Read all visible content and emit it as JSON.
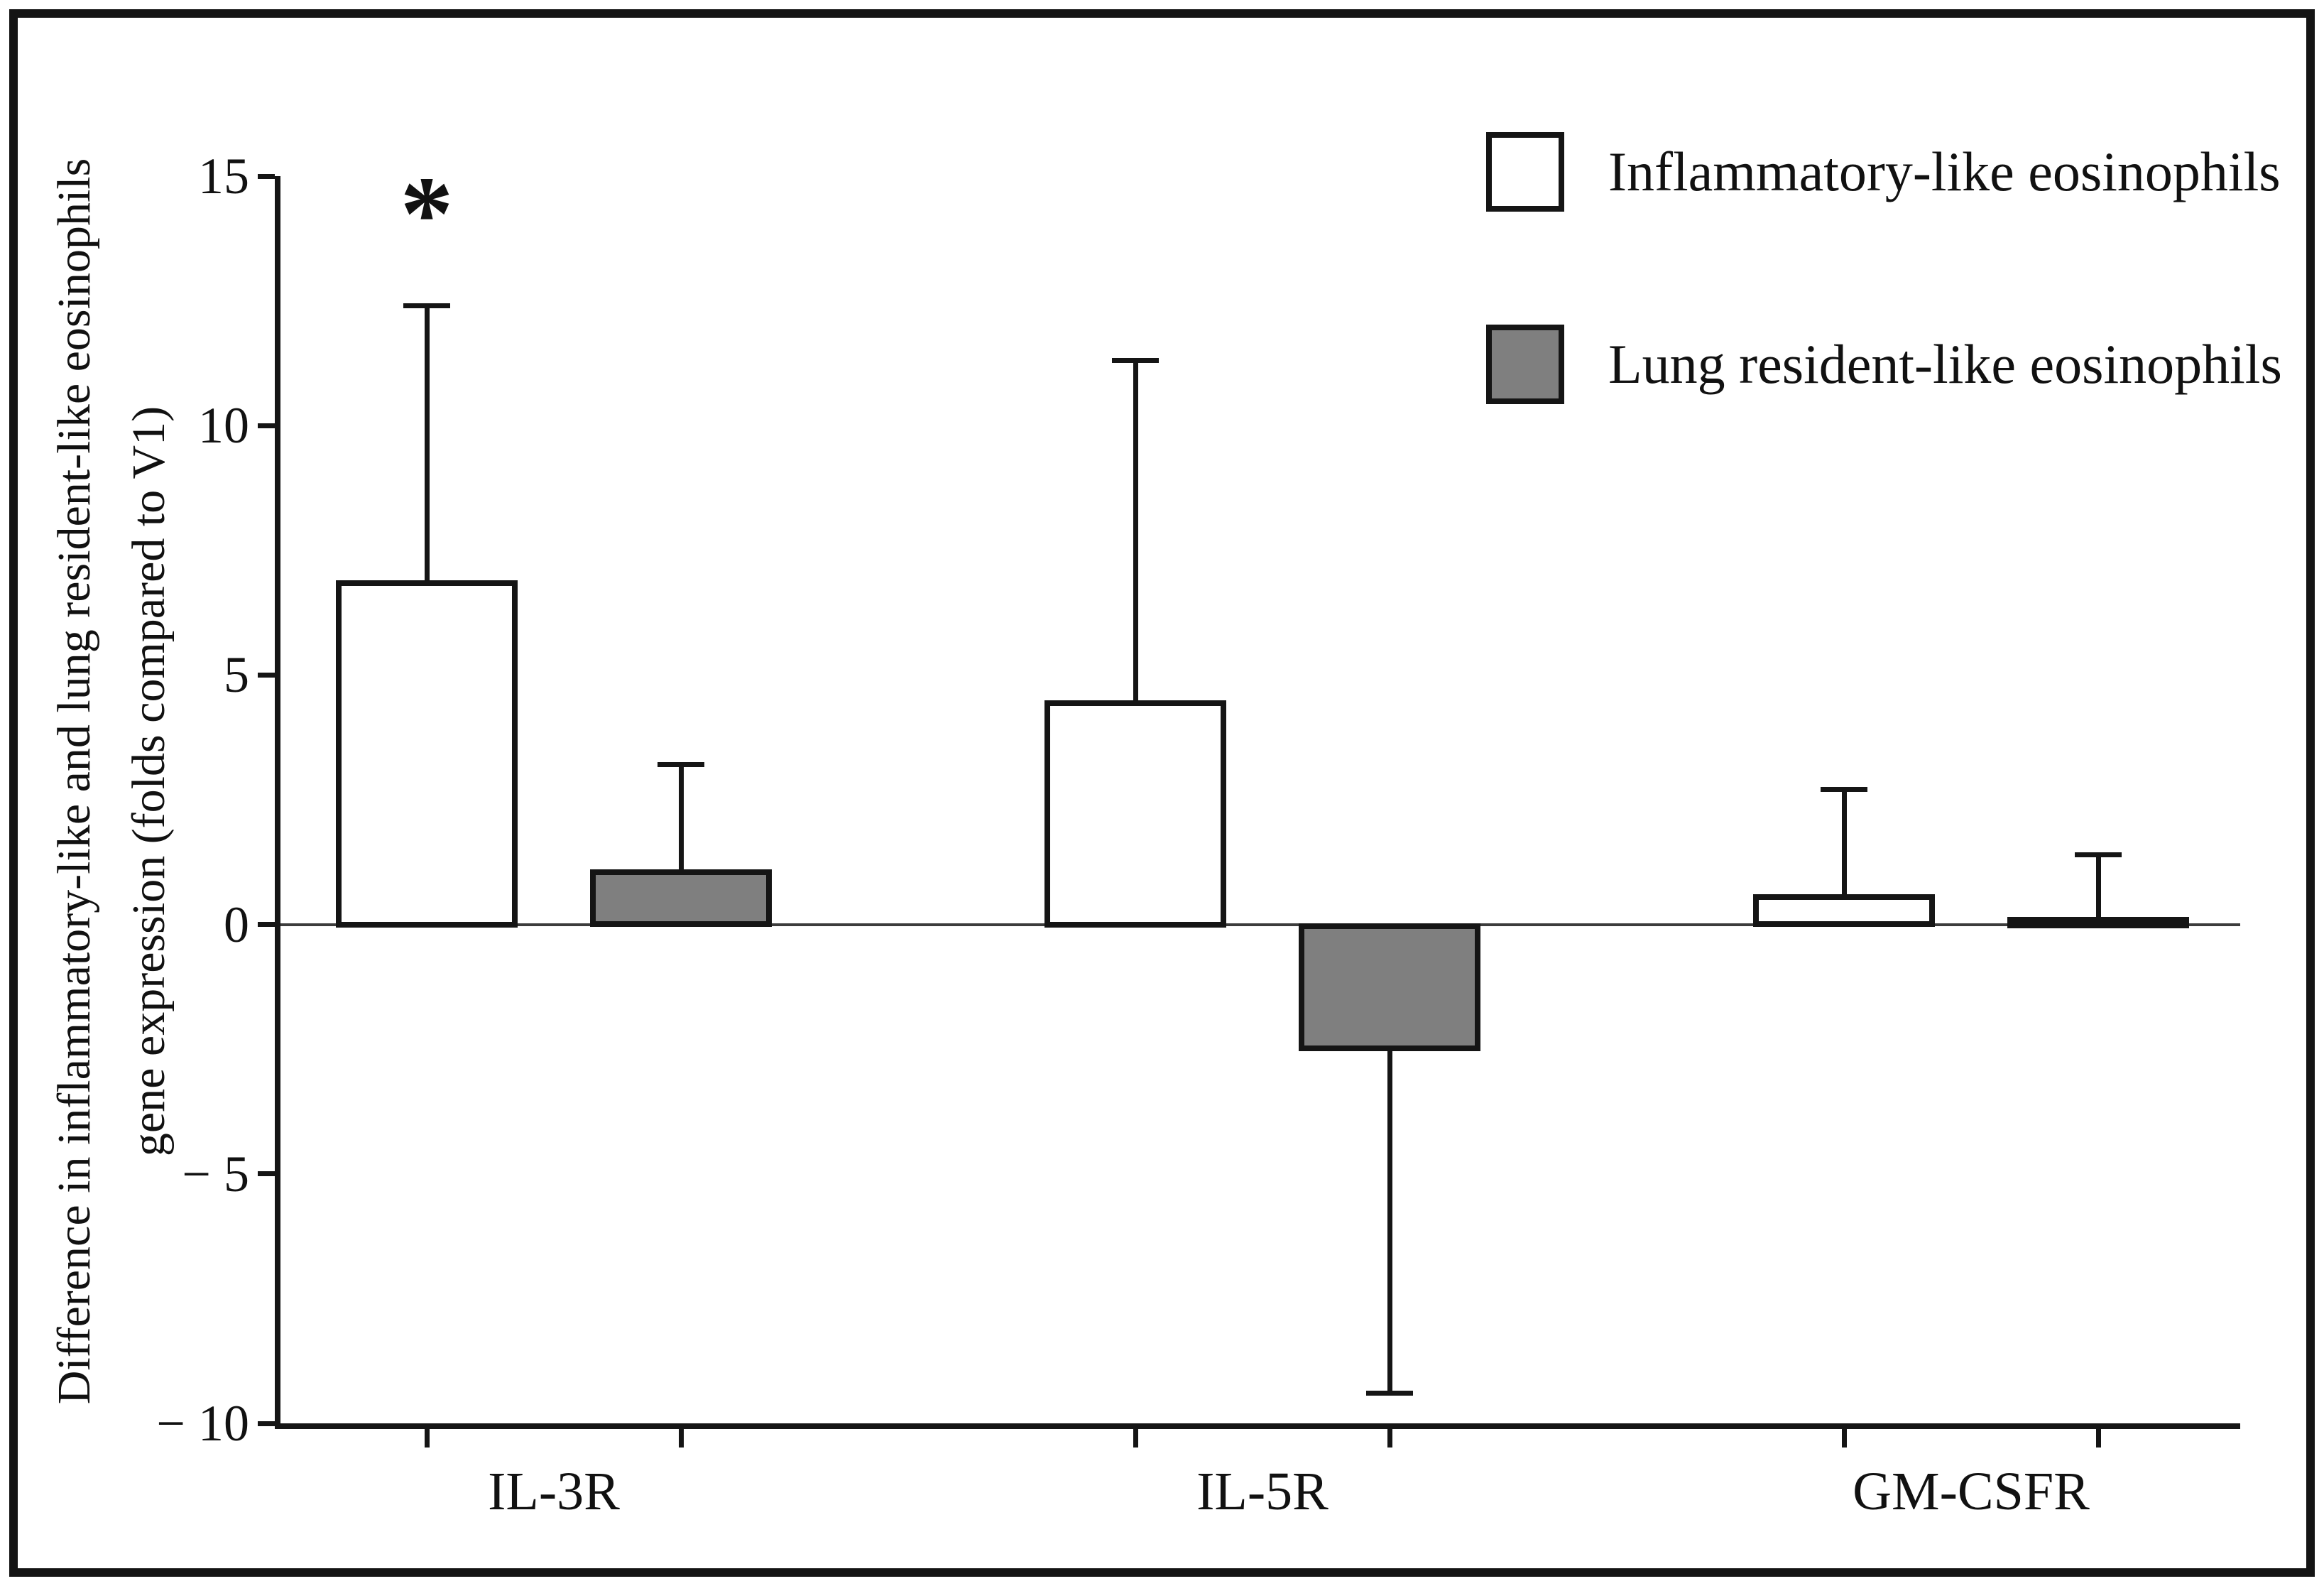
{
  "chart": {
    "y_axis": {
      "label_line1": "Difference in inflammatory-like and lung resident-like eosinophils",
      "label_line2": "gene expression (folds compared to V1)",
      "ticks": [
        {
          "value": 15,
          "label": "15"
        },
        {
          "value": 10,
          "label": "10"
        },
        {
          "value": 5,
          "label": "5"
        },
        {
          "value": 0,
          "label": "0"
        },
        {
          "value": -5,
          "label": "− 5"
        },
        {
          "value": -10,
          "label": "− 10"
        }
      ]
    },
    "legend": [
      {
        "label": "Inflammatory-like eosinophils",
        "fill": "#ffffff"
      },
      {
        "label": "Lung resident-like eosinophils",
        "fill": "#7f7f7f"
      }
    ]
  },
  "chart_data": {
    "type": "bar",
    "title": "",
    "categories": [
      "IL-3R",
      "IL-5R",
      "GM-CSFR"
    ],
    "series": [
      {
        "name": "Inflammatory-like eosinophils",
        "fill": "#ffffff",
        "values": [
          6.9,
          4.5,
          0.6
        ],
        "error_tips": [
          12.4,
          11.3,
          2.7
        ]
      },
      {
        "name": "Lung resident-like eosinophils",
        "fill": "#7f7f7f",
        "values": [
          1.1,
          -2.5,
          0.15
        ],
        "error_tips": [
          3.2,
          -9.4,
          1.4
        ]
      }
    ],
    "ylabel": "Difference in inflammatory-like and lung resident-like eosinophils gene expression (folds compared to V1)",
    "xlabel": "",
    "yticks": [
      15,
      10,
      5,
      0,
      -5,
      -10
    ],
    "ylim": [
      -10,
      15
    ],
    "grid": false,
    "error_bars": "one-sided, away from zero",
    "legend_position": "top-right",
    "significance": [
      {
        "text": "*",
        "category": "IL-3R",
        "series": "Inflammatory-like eosinophils"
      }
    ]
  }
}
